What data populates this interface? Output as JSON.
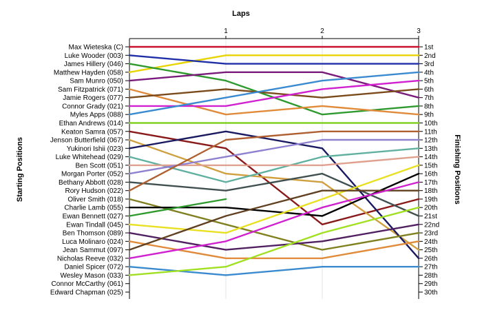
{
  "chart_data": {
    "type": "line",
    "title": "Laps",
    "ylabel_left": "Starting Positions",
    "ylabel_right": "Finishing Positions",
    "x": [
      0,
      1,
      2,
      3
    ],
    "x_tick_labels": [
      "1",
      "2",
      "3"
    ],
    "y_range": [
      1,
      30
    ],
    "right_tick_labels": [
      "1st",
      "2nd",
      "3rd",
      "4th",
      "5th",
      "6th",
      "7th",
      "8th",
      "9th",
      "10th",
      "11th",
      "12th",
      "13th",
      "14th",
      "15th",
      "16th",
      "17th",
      "18th",
      "19th",
      "20th",
      "21st",
      "22nd",
      "23rd",
      "24th",
      "25th",
      "26th",
      "27th",
      "28th",
      "29th",
      "30th"
    ],
    "drivers": [
      "Max Wieteska (C)",
      "Luke Wooder (003)",
      "James Hillery (046)",
      "Matthew Hayden (058)",
      "Sam Munro (050)",
      "Sam Fitzpatrick (071)",
      "Jamie Rogers (077)",
      "Connor Grady (021)",
      "Myles Apps (088)",
      "Ethan Andrews (014)",
      "Keaton Samra (057)",
      "Jenson Butterfield (067)",
      "Yukinori Ishii (023)",
      "Luke Whitehead (029)",
      "Ben Scott (051)",
      "Morgan Porter (052)",
      "Bethany Abbott (028)",
      "Rory Hudson (022)",
      "Oliver Smith (018)",
      "Charlie Lamb (055)",
      "Ewan Bennett (027)",
      "Ewan Tindall (045)",
      "Ben Thomson (089)",
      "Luca Molinaro (024)",
      "Jean Sammut (097)",
      "Nicholas Reeve (032)",
      "Daniel Spicer (072)",
      "Wesley Mason (033)",
      "Connor McCarthy (061)",
      "Edward Chapman (025)"
    ],
    "series": [
      {
        "color": "#c8102e",
        "values": [
          1,
          1,
          1,
          1
        ]
      },
      {
        "color": "#e8d400",
        "values": [
          4,
          2,
          2,
          2
        ]
      },
      {
        "color": "#1f2fa8",
        "values": [
          2,
          3,
          3,
          3
        ]
      },
      {
        "color": "#2e9a2e",
        "values": [
          3,
          5,
          9,
          8
        ]
      },
      {
        "color": "#7a1a7a",
        "values": [
          5,
          4,
          4,
          7
        ]
      },
      {
        "color": "#e08a3a",
        "values": [
          6,
          9,
          8,
          9
        ]
      },
      {
        "color": "#7a4a1a",
        "values": [
          7,
          6,
          7,
          6
        ]
      },
      {
        "color": "#d020d0",
        "values": [
          8,
          8,
          6,
          5
        ]
      },
      {
        "color": "#3a8ad0",
        "values": [
          9,
          7,
          5,
          4
        ]
      },
      {
        "color": "#80d020",
        "values": [
          10,
          10,
          10,
          10
        ]
      },
      {
        "color": "#8a1a1a",
        "values": [
          11,
          13,
          22,
          19
        ]
      },
      {
        "color": "#d0a040",
        "values": [
          12,
          16,
          17,
          25
        ]
      },
      {
        "color": "#1a1a60",
        "values": [
          13,
          11,
          13,
          26
        ]
      },
      {
        "color": "#60b0a0",
        "values": [
          14,
          17,
          14,
          13
        ]
      },
      {
        "color": "#e0a090",
        "values": [
          15,
          15,
          15,
          14
        ]
      },
      {
        "color": "#9080d0",
        "values": [
          16,
          14,
          12,
          12
        ]
      },
      {
        "color": "#405050",
        "values": [
          17,
          18,
          16,
          21
        ]
      },
      {
        "color": "#b06030",
        "values": [
          18,
          12,
          11,
          11
        ]
      },
      {
        "color": "#808020",
        "values": [
          19,
          22,
          25,
          23
        ]
      },
      {
        "color": "#000000",
        "values": [
          20,
          20,
          21,
          16
        ]
      },
      {
        "color": "#2e9a2e",
        "values": [
          21,
          19,
          null,
          null
        ]
      },
      {
        "color": "#e8e020",
        "values": [
          22,
          23,
          19,
          15
        ]
      },
      {
        "color": "#502060",
        "values": [
          23,
          25,
          24,
          22
        ]
      },
      {
        "color": "#e08a3a",
        "values": [
          24,
          26,
          26,
          24
        ]
      },
      {
        "color": "#604020",
        "values": [
          25,
          21,
          18,
          18
        ]
      },
      {
        "color": "#d020d0",
        "values": [
          26,
          24,
          20,
          17
        ]
      },
      {
        "color": "#3a8ad0",
        "values": [
          27,
          28,
          27,
          27
        ]
      },
      {
        "color": "#a0e020",
        "values": [
          28,
          27,
          23,
          20
        ]
      },
      {
        "color": null,
        "values": [
          29,
          null,
          null,
          null
        ]
      },
      {
        "color": null,
        "values": [
          30,
          null,
          null,
          null
        ]
      }
    ]
  }
}
